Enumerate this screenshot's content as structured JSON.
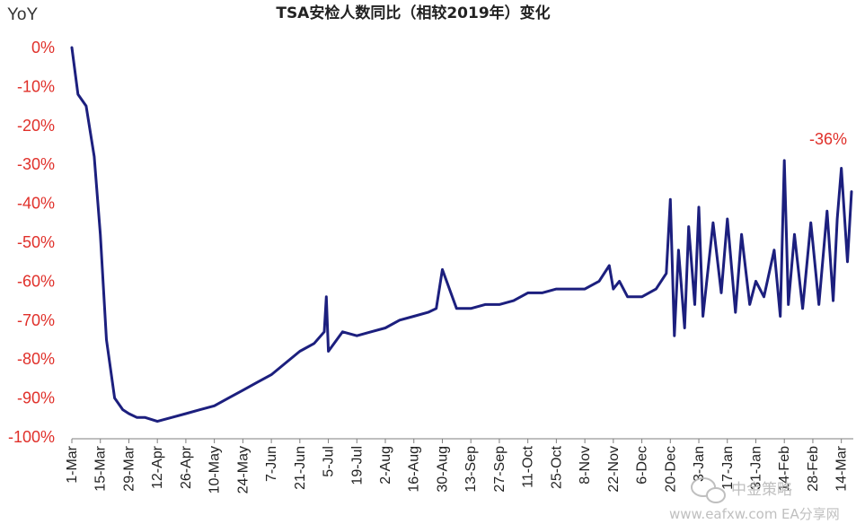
{
  "chart_data": {
    "type": "line",
    "title": "TSA安检人数同比（相较2019年）变化",
    "ylabel": "YoY",
    "xlabel": "",
    "ylim": [
      -100,
      0
    ],
    "yticks": [
      0,
      -10,
      -20,
      -30,
      -40,
      -50,
      -60,
      -70,
      -80,
      -90,
      -100
    ],
    "ytick_labels": [
      "0%",
      "-10%",
      "-20%",
      "-30%",
      "-40%",
      "-50%",
      "-60%",
      "-70%",
      "-80%",
      "-90%",
      "-100%"
    ],
    "xtick_labels": [
      "1-Mar",
      "15-Mar",
      "29-Mar",
      "12-Apr",
      "26-Apr",
      "10-May",
      "24-May",
      "7-Jun",
      "21-Jun",
      "5-Jul",
      "19-Jul",
      "2-Aug",
      "16-Aug",
      "30-Aug",
      "13-Sep",
      "27-Sep",
      "11-Oct",
      "25-Oct",
      "8-Nov",
      "22-Nov",
      "6-Dec",
      "20-Dec",
      "3-Jan",
      "17-Jan",
      "31-Jan",
      "14-Feb",
      "28-Feb",
      "14-Mar"
    ],
    "grid": false,
    "legend": "none",
    "line_color": "#1c1f7e",
    "annotation": "-36%",
    "series": [
      {
        "x": [
          "1-Mar",
          "4-Mar",
          "8-Mar",
          "12-Mar",
          "15-Mar",
          "18-Mar",
          "22-Mar",
          "26-Mar",
          "29-Mar",
          "2-Apr",
          "6-Apr",
          "12-Apr",
          "19-Apr",
          "26-Apr",
          "3-May",
          "10-May",
          "17-May",
          "24-May",
          "31-May",
          "7-Jun",
          "14-Jun",
          "21-Jun",
          "28-Jun",
          "3-Jul",
          "4-Jul",
          "5-Jul",
          "12-Jul",
          "19-Jul",
          "26-Jul",
          "2-Aug",
          "9-Aug",
          "16-Aug",
          "23-Aug",
          "27-Aug",
          "30-Aug",
          "6-Sep",
          "13-Sep",
          "20-Sep",
          "27-Sep",
          "4-Oct",
          "11-Oct",
          "18-Oct",
          "25-Oct",
          "1-Nov",
          "8-Nov",
          "15-Nov",
          "20-Nov",
          "22-Nov",
          "25-Nov",
          "29-Nov",
          "6-Dec",
          "13-Dec",
          "18-Dec",
          "20-Dec",
          "22-Dec",
          "24-Dec",
          "27-Dec",
          "29-Dec",
          "1-Jan",
          "3-Jan",
          "5-Jan",
          "10-Jan",
          "14-Jan",
          "17-Jan",
          "21-Jan",
          "24-Jan",
          "28-Jan",
          "31-Jan",
          "4-Feb",
          "9-Feb",
          "12-Feb",
          "14-Feb",
          "16-Feb",
          "19-Feb",
          "23-Feb",
          "27-Feb",
          "28-Feb",
          "3-Mar",
          "7-Mar",
          "10-Mar",
          "12-Mar",
          "14-Mar",
          "17-Mar",
          "19-Mar"
        ],
        "values": [
          0,
          -12,
          -15,
          -28,
          -48,
          -75,
          -90,
          -93,
          -94,
          -95,
          -95,
          -96,
          -95,
          -94,
          -93,
          -92,
          -90,
          -88,
          -86,
          -84,
          -81,
          -78,
          -76,
          -73,
          -64,
          -78,
          -73,
          -74,
          -73,
          -72,
          -70,
          -69,
          -68,
          -67,
          -57,
          -67,
          -67,
          -66,
          -66,
          -65,
          -63,
          -63,
          -62,
          -62,
          -62,
          -60,
          -56,
          -62,
          -60,
          -64,
          -64,
          -62,
          -58,
          -39,
          -74,
          -52,
          -72,
          -46,
          -66,
          -41,
          -69,
          -45,
          -63,
          -44,
          -68,
          -48,
          -66,
          -60,
          -64,
          -52,
          -69,
          -29,
          -66,
          -48,
          -67,
          -45,
          -50,
          -66,
          -42,
          -65,
          -44,
          -31,
          -55,
          -37
        ]
      }
    ]
  },
  "watermark": {
    "brand": "中金策略",
    "site": "www.eafxw.com",
    "site2": "EA分享网"
  }
}
